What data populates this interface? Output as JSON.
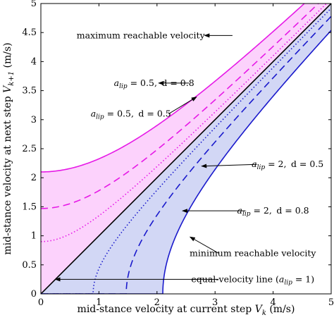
{
  "chart_data": {
    "type": "line",
    "xlabel": "mid-stance velocity at current step ",
    "xlabel_var": "V",
    "xlabel_sub": "k",
    "xlabel_unit": " (m/s)",
    "ylabel": "mid-stance velocity at next step ",
    "ylabel_var": "V",
    "ylabel_sub": "k+1",
    "ylabel_unit": " (m/s)",
    "xlim": [
      0,
      5
    ],
    "ylim": [
      0,
      5
    ],
    "xticks": [
      "0",
      "1",
      "2",
      "3",
      "4",
      "5"
    ],
    "yticks": [
      "0",
      "0.5",
      "1",
      "1.5",
      "2",
      "2.5",
      "3",
      "3.5",
      "4",
      "4.5",
      "5"
    ],
    "grid": false,
    "colors": {
      "upper": "#e619e6",
      "upper_fill": "#fcd2fc",
      "lower": "#1a1acc",
      "lower_fill": "#d2d7f5",
      "identity": "#000000"
    },
    "series": [
      {
        "style": "solid",
        "color": "upper",
        "family": "upper",
        "a": 1,
        "y0": 2.1
      },
      {
        "style": "dashed",
        "color": "upper",
        "family": "upper",
        "a": 1,
        "y0": 1.47
      },
      {
        "style": "dotted",
        "color": "upper",
        "family": "upper",
        "a": 1,
        "y0": 0.9
      },
      {
        "style": "solid",
        "color": "identity",
        "family": "identity"
      },
      {
        "style": "dotted",
        "color": "lower",
        "family": "lower",
        "x0": 0.9
      },
      {
        "style": "dashed",
        "color": "lower",
        "family": "lower",
        "x0": 1.47
      },
      {
        "style": "solid",
        "color": "lower",
        "family": "lower",
        "x0": 2.1
      }
    ],
    "annotations": [
      {
        "id": "max",
        "text": "maximum reachable velocity",
        "tx": 1.72,
        "ty": 4.45,
        "ax1": 3.3,
        "ay1": 4.45,
        "ax2": 2.82,
        "ay2": 4.45
      },
      {
        "id": "u08",
        "pre": "a",
        "sub": "lip",
        "post": " = 0.5, d = 0.8",
        "tx": 1.95,
        "ty": 3.63,
        "ax1": 2.55,
        "ay1": 3.63,
        "ax2": 2.03,
        "ay2": 3.63
      },
      {
        "id": "u05",
        "pre": "a",
        "sub": "lip",
        "post": " = 0.5, d = 0.5",
        "tx": 1.55,
        "ty": 3.1,
        "ax1": 2.2,
        "ay1": 3.1,
        "ax2": 2.68,
        "ay2": 3.39
      },
      {
        "id": "l05",
        "pre": "a",
        "sub": "lip",
        "post": " = 2, d = 0.5",
        "tx": 4.25,
        "ty": 2.23,
        "ax1": 3.72,
        "ay1": 2.23,
        "ax2": 2.77,
        "ay2": 2.2
      },
      {
        "id": "l08",
        "pre": "a",
        "sub": "lip",
        "post": " = 2, d = 0.8",
        "tx": 4.0,
        "ty": 1.43,
        "ax1": 3.52,
        "ay1": 1.43,
        "ax2": 2.44,
        "ay2": 1.43
      },
      {
        "id": "min",
        "text": "minimum reachable velocity",
        "tx": 3.65,
        "ty": 0.7,
        "ax1": 3.06,
        "ay1": 0.7,
        "ax2": 2.57,
        "ay2": 0.98
      },
      {
        "id": "eq",
        "text": "equal-velocity line (",
        "text_var": "a",
        "text_sub": "lip",
        "text_post": " = 1)",
        "tx": 3.65,
        "ty": 0.25,
        "ax1": 3.06,
        "ay1": 0.25,
        "ax2": 0.25,
        "ay2": 0.25
      }
    ]
  }
}
